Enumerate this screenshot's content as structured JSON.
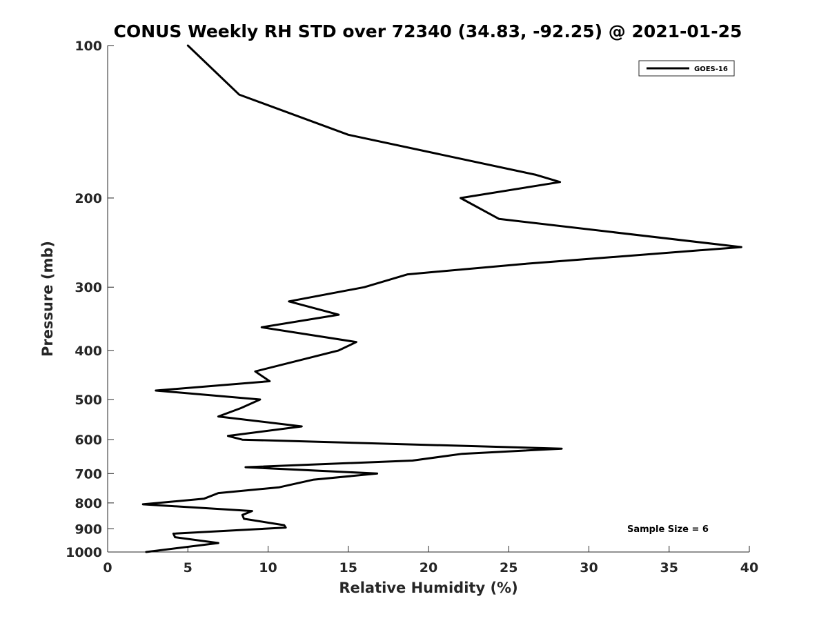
{
  "chart_data": {
    "type": "line",
    "title": "CONUS Weekly RH STD over 72340 (34.83, -92.25) @ 2021-01-25",
    "xlabel": "Relative Humidity (%)",
    "ylabel": "Pressure (mb)",
    "xlim": [
      0,
      40
    ],
    "ylim": [
      100,
      1000
    ],
    "y_scale": "log",
    "y_reversed": true,
    "x_ticks": [
      0,
      5,
      10,
      15,
      20,
      25,
      30,
      35,
      40
    ],
    "y_ticks": [
      100,
      200,
      300,
      400,
      500,
      600,
      700,
      800,
      900,
      1000
    ],
    "grid": false,
    "legend_position": "top-right",
    "series": [
      {
        "name": "GOES-16",
        "color": "#000000",
        "x": [
          5.0,
          8.2,
          15.0,
          26.7,
          28.2,
          22.0,
          24.4,
          39.5,
          25.9,
          18.7,
          16.0,
          11.3,
          14.4,
          9.6,
          15.5,
          14.4,
          9.2,
          10.1,
          3.0,
          9.5,
          8.3,
          6.9,
          12.1,
          7.5,
          8.4,
          28.3,
          22.1,
          19.0,
          8.6,
          16.8,
          12.8,
          10.7,
          6.9,
          6.0,
          2.2,
          9.0,
          8.4,
          8.5,
          11.0,
          11.1,
          4.1,
          4.2,
          6.9,
          2.4
        ],
        "y": [
          100,
          125,
          150,
          180,
          186,
          200,
          220,
          250,
          270,
          283,
          300,
          320,
          340,
          360,
          385,
          400,
          440,
          460,
          480,
          500,
          520,
          540,
          565,
          590,
          600,
          625,
          640,
          660,
          680,
          700,
          720,
          745,
          765,
          785,
          805,
          830,
          845,
          860,
          885,
          895,
          920,
          935,
          960,
          1000
        ]
      }
    ],
    "annotations": [
      "Sample Size = 6"
    ]
  }
}
